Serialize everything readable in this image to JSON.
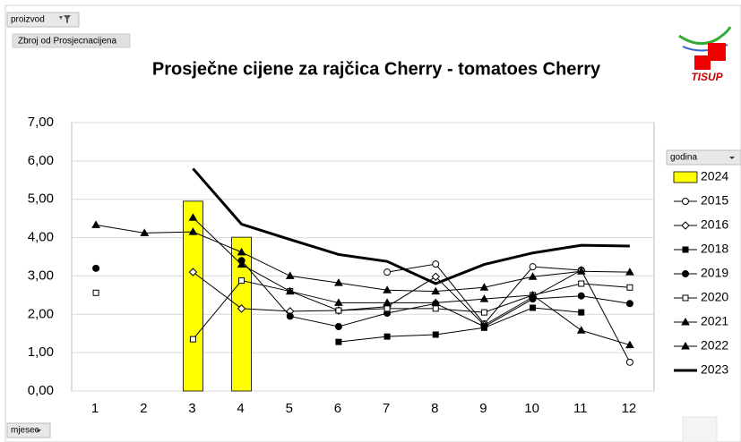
{
  "chart_data": {
    "type": "line",
    "title": "Prosječne cijene za rajčica  Cherry - tomatoes Cherry",
    "filter_label": "proizvod",
    "value_field": "Zbroj od Prosjecnacijena",
    "axis_field": "mjesec",
    "legend_title": "godina",
    "logo_text": "TISUP",
    "categories": [
      "1",
      "2",
      "3",
      "4",
      "5",
      "6",
      "7",
      "8",
      "9",
      "10",
      "11",
      "12"
    ],
    "ylim": [
      0,
      7
    ],
    "yticks": [
      {
        "value": 0,
        "label": "0,00"
      },
      {
        "value": 1,
        "label": "1,00"
      },
      {
        "value": 2,
        "label": "2,00"
      },
      {
        "value": 3,
        "label": "3,00"
      },
      {
        "value": 4,
        "label": "4,00"
      },
      {
        "value": 5,
        "label": "5,00"
      },
      {
        "value": 6,
        "label": "6,00"
      },
      {
        "value": 7,
        "label": "7,00"
      }
    ],
    "grid": true,
    "legend": "right",
    "series": [
      {
        "name": "2024",
        "type": "bar",
        "color": "#ffff00",
        "values": [
          null,
          null,
          4.95,
          4.01,
          null,
          null,
          null,
          null,
          null,
          null,
          null,
          null
        ]
      },
      {
        "name": "2015",
        "color": "#000000",
        "marker": "circle-open",
        "values": [
          null,
          null,
          null,
          null,
          null,
          null,
          3.1,
          3.31,
          1.75,
          3.24,
          3.15,
          0.75
        ]
      },
      {
        "name": "2016",
        "color": "#000000",
        "marker": "diamond-open",
        "values": [
          null,
          null,
          3.1,
          2.15,
          2.08,
          2.1,
          2.2,
          2.98,
          1.72,
          2.45,
          3.15,
          null
        ]
      },
      {
        "name": "2018",
        "color": "#000000",
        "marker": "square",
        "values": [
          null,
          null,
          null,
          null,
          null,
          1.28,
          1.42,
          1.47,
          1.65,
          2.17,
          2.05,
          null
        ]
      },
      {
        "name": "2019",
        "color": "#000000",
        "marker": "circle",
        "values": [
          3.2,
          null,
          null,
          3.4,
          1.95,
          1.68,
          2.03,
          2.28,
          1.68,
          2.4,
          2.48,
          2.28
        ]
      },
      {
        "name": "2020",
        "color": "#000000",
        "marker": "square-open",
        "values": [
          2.56,
          null,
          1.35,
          2.88,
          2.6,
          2.1,
          2.15,
          2.15,
          2.05,
          2.5,
          2.8,
          2.7
        ]
      },
      {
        "name": "2021",
        "color": "#000000",
        "marker": "triangle",
        "values": [
          null,
          null,
          4.52,
          3.3,
          2.6,
          2.3,
          2.3,
          2.3,
          2.4,
          2.5,
          1.58,
          1.2
        ]
      },
      {
        "name": "2022",
        "color": "#000000",
        "marker": "triangle",
        "values": [
          4.33,
          4.12,
          4.15,
          3.62,
          3.0,
          2.82,
          2.63,
          2.6,
          2.7,
          2.98,
          3.12,
          3.1
        ]
      },
      {
        "name": "2023",
        "color": "#000000",
        "marker": "none",
        "line_width": 3,
        "values": [
          null,
          null,
          5.8,
          4.35,
          3.95,
          3.56,
          3.38,
          2.8,
          3.3,
          3.6,
          3.8,
          3.78
        ]
      }
    ]
  }
}
